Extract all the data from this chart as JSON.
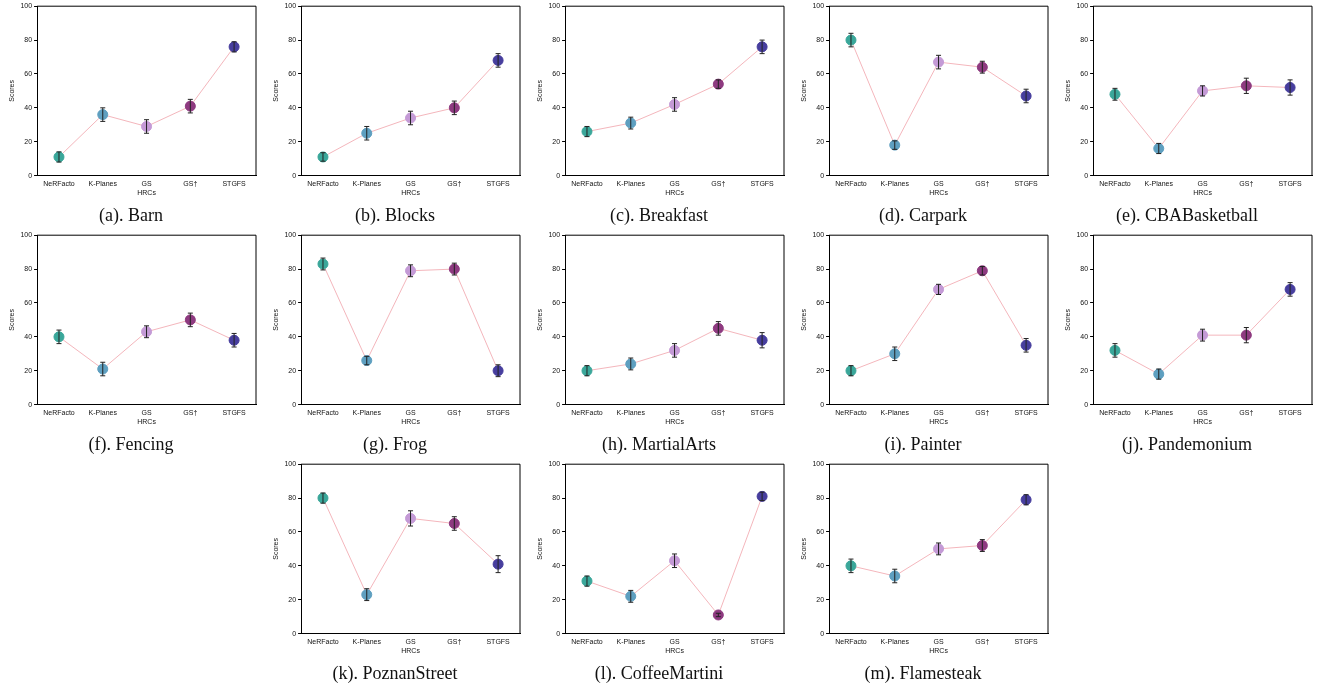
{
  "chart_data": [
    {
      "type": "line",
      "title": "(a). Barn",
      "xlabel": "HRCs",
      "ylabel": "Scores",
      "categories": [
        "NeRFacto",
        "K-Planes",
        "GS",
        "GS†",
        "STGFS"
      ],
      "ylim": [
        0,
        100
      ],
      "yticks": [
        0,
        20,
        40,
        60,
        80,
        100
      ],
      "grid": false,
      "legend": false,
      "marker": "circle",
      "series": [
        {
          "color": "#f4b6bc",
          "colors": [
            "#3aa79a",
            "#5e9fc0",
            "#c49ad6",
            "#8e3a80",
            "#473e9e"
          ],
          "values": [
            11,
            36,
            29,
            41,
            76
          ],
          "errors": [
            3,
            4,
            4,
            4,
            3
          ]
        }
      ]
    },
    {
      "type": "line",
      "title": "(b). Blocks",
      "xlabel": "HRCs",
      "ylabel": "Scores",
      "categories": [
        "NeRFacto",
        "K-Planes",
        "GS",
        "GS†",
        "STGFS"
      ],
      "ylim": [
        0,
        100
      ],
      "yticks": [
        0,
        20,
        40,
        60,
        80,
        100
      ],
      "grid": false,
      "legend": false,
      "marker": "circle",
      "series": [
        {
          "color": "#f4b6bc",
          "colors": [
            "#3aa79a",
            "#5e9fc0",
            "#c49ad6",
            "#8e3a80",
            "#473e9e"
          ],
          "values": [
            11,
            25,
            34,
            40,
            68
          ],
          "errors": [
            2.5,
            4,
            4,
            4,
            4
          ]
        }
      ]
    },
    {
      "type": "line",
      "title": "(c). Breakfast",
      "xlabel": "HRCs",
      "ylabel": "Scores",
      "categories": [
        "NeRFacto",
        "K-Planes",
        "GS",
        "GS†",
        "STGFS"
      ],
      "ylim": [
        0,
        100
      ],
      "yticks": [
        0,
        20,
        40,
        60,
        80,
        100
      ],
      "grid": false,
      "legend": false,
      "marker": "circle",
      "series": [
        {
          "color": "#f4b6bc",
          "colors": [
            "#3aa79a",
            "#5e9fc0",
            "#c49ad6",
            "#8e3a80",
            "#473e9e"
          ],
          "values": [
            26,
            31,
            42,
            54,
            76
          ],
          "errors": [
            3,
            3.5,
            4,
            2.5,
            4
          ]
        }
      ]
    },
    {
      "type": "line",
      "title": "(d). Carpark",
      "xlabel": "HRCs",
      "ylabel": "Scores",
      "categories": [
        "NeRFacto",
        "K-Planes",
        "GS",
        "GS†",
        "STGFS"
      ],
      "ylim": [
        0,
        100
      ],
      "yticks": [
        0,
        20,
        40,
        60,
        80,
        100
      ],
      "grid": false,
      "legend": false,
      "marker": "circle",
      "series": [
        {
          "color": "#f4b6bc",
          "colors": [
            "#3aa79a",
            "#5e9fc0",
            "#c49ad6",
            "#8e3a80",
            "#473e9e"
          ],
          "values": [
            80,
            18,
            67,
            64,
            47
          ],
          "errors": [
            4,
            2.5,
            4,
            3.5,
            4
          ]
        }
      ]
    },
    {
      "type": "line",
      "title": "(e). CBABasketball",
      "xlabel": "HRCs",
      "ylabel": "Scores",
      "categories": [
        "NeRFacto",
        "K-Planes",
        "GS",
        "GS†",
        "STGFS"
      ],
      "ylim": [
        0,
        100
      ],
      "yticks": [
        0,
        20,
        40,
        60,
        80,
        100
      ],
      "grid": false,
      "legend": false,
      "marker": "circle",
      "series": [
        {
          "color": "#f4b6bc",
          "colors": [
            "#3aa79a",
            "#5e9fc0",
            "#c49ad6",
            "#8e3a80",
            "#473e9e"
          ],
          "values": [
            48,
            16,
            50,
            53,
            52
          ],
          "errors": [
            3.5,
            3,
            3,
            4.5,
            4.5
          ]
        }
      ]
    },
    {
      "type": "line",
      "title": "(f). Fencing",
      "xlabel": "HRCs",
      "ylabel": "Scores",
      "categories": [
        "NeRFacto",
        "K-Planes",
        "GS",
        "GS†",
        "STGFS"
      ],
      "ylim": [
        0,
        100
      ],
      "yticks": [
        0,
        20,
        40,
        60,
        80,
        100
      ],
      "grid": false,
      "legend": false,
      "marker": "circle",
      "series": [
        {
          "color": "#f4b6bc",
          "colors": [
            "#3aa79a",
            "#5e9fc0",
            "#c49ad6",
            "#8e3a80",
            "#473e9e"
          ],
          "values": [
            40,
            21,
            43,
            50,
            38
          ],
          "errors": [
            4,
            4,
            3.5,
            4,
            4
          ]
        }
      ]
    },
    {
      "type": "line",
      "title": "(g). Frog",
      "xlabel": "HRCs",
      "ylabel": "Scores",
      "categories": [
        "NeRFacto",
        "K-Planes",
        "GS",
        "GS†",
        "STGFS"
      ],
      "ylim": [
        0,
        100
      ],
      "yticks": [
        0,
        20,
        40,
        60,
        80,
        100
      ],
      "grid": false,
      "legend": false,
      "marker": "circle",
      "series": [
        {
          "color": "#f4b6bc",
          "colors": [
            "#3aa79a",
            "#5e9fc0",
            "#c49ad6",
            "#8e3a80",
            "#473e9e"
          ],
          "values": [
            83,
            26,
            79,
            80,
            20
          ],
          "errors": [
            3.5,
            2.5,
            3.5,
            3.5,
            3.5
          ]
        }
      ]
    },
    {
      "type": "line",
      "title": "(h). MartialArts",
      "xlabel": "HRCs",
      "ylabel": "Scores",
      "categories": [
        "NeRFacto",
        "K-Planes",
        "GS",
        "GS†",
        "STGFS"
      ],
      "ylim": [
        0,
        100
      ],
      "yticks": [
        0,
        20,
        40,
        60,
        80,
        100
      ],
      "grid": false,
      "legend": false,
      "marker": "circle",
      "series": [
        {
          "color": "#f4b6bc",
          "colors": [
            "#3aa79a",
            "#5e9fc0",
            "#c49ad6",
            "#8e3a80",
            "#473e9e"
          ],
          "values": [
            20,
            24,
            32,
            45,
            38
          ],
          "errors": [
            3,
            3.5,
            4,
            4,
            4.5
          ]
        }
      ]
    },
    {
      "type": "line",
      "title": "(i). Painter",
      "xlabel": "HRCs",
      "ylabel": "Scores",
      "categories": [
        "NeRFacto",
        "K-Planes",
        "GS",
        "GS†",
        "STGFS"
      ],
      "ylim": [
        0,
        100
      ],
      "yticks": [
        0,
        20,
        40,
        60,
        80,
        100
      ],
      "grid": false,
      "legend": false,
      "marker": "circle",
      "series": [
        {
          "color": "#f4b6bc",
          "colors": [
            "#3aa79a",
            "#5e9fc0",
            "#c49ad6",
            "#8e3a80",
            "#473e9e"
          ],
          "values": [
            20,
            30,
            68,
            79,
            35
          ],
          "errors": [
            3,
            4,
            3,
            2.5,
            4
          ]
        }
      ]
    },
    {
      "type": "line",
      "title": "(j). Pandemonium",
      "xlabel": "HRCs",
      "ylabel": "Scores",
      "categories": [
        "NeRFacto",
        "K-Planes",
        "GS",
        "GS†",
        "STGFS"
      ],
      "ylim": [
        0,
        100
      ],
      "yticks": [
        0,
        20,
        40,
        60,
        80,
        100
      ],
      "grid": false,
      "legend": false,
      "marker": "circle",
      "series": [
        {
          "color": "#f4b6bc",
          "colors": [
            "#3aa79a",
            "#5e9fc0",
            "#c49ad6",
            "#8e3a80",
            "#473e9e"
          ],
          "values": [
            32,
            18,
            41,
            41,
            68
          ],
          "errors": [
            4,
            3,
            3.5,
            4.5,
            4
          ]
        }
      ]
    },
    {
      "type": "line",
      "title": "(k). PoznanStreet",
      "xlabel": "HRCs",
      "ylabel": "Scores",
      "categories": [
        "NeRFacto",
        "K-Planes",
        "GS",
        "GS†",
        "STGFS"
      ],
      "ylim": [
        0,
        100
      ],
      "yticks": [
        0,
        20,
        40,
        60,
        80,
        100
      ],
      "grid": false,
      "legend": false,
      "marker": "circle",
      "series": [
        {
          "color": "#f4b6bc",
          "colors": [
            "#3aa79a",
            "#5e9fc0",
            "#c49ad6",
            "#8e3a80",
            "#473e9e"
          ],
          "values": [
            80,
            23,
            68,
            65,
            41
          ],
          "errors": [
            3,
            3.5,
            4.5,
            4,
            5
          ]
        }
      ]
    },
    {
      "type": "line",
      "title": "(l). CoffeeMartini",
      "xlabel": "HRCs",
      "ylabel": "Scores",
      "categories": [
        "NeRFacto",
        "K-Planes",
        "GS",
        "GS†",
        "STGFS"
      ],
      "ylim": [
        0,
        100
      ],
      "yticks": [
        0,
        20,
        40,
        60,
        80,
        100
      ],
      "grid": false,
      "legend": false,
      "marker": "circle",
      "series": [
        {
          "color": "#f4b6bc",
          "colors": [
            "#3aa79a",
            "#5e9fc0",
            "#c49ad6",
            "#8e3a80",
            "#473e9e"
          ],
          "values": [
            31,
            22,
            43,
            11,
            81
          ],
          "errors": [
            3,
            3.5,
            4,
            1,
            2.5
          ]
        }
      ]
    },
    {
      "type": "line",
      "title": "(m). Flamesteak",
      "xlabel": "HRCs",
      "ylabel": "Scores",
      "categories": [
        "NeRFacto",
        "K-Planes",
        "GS",
        "GS†",
        "STGFS"
      ],
      "ylim": [
        0,
        100
      ],
      "yticks": [
        0,
        20,
        40,
        60,
        80,
        100
      ],
      "grid": false,
      "legend": false,
      "marker": "circle",
      "series": [
        {
          "color": "#f4b6bc",
          "colors": [
            "#3aa79a",
            "#5e9fc0",
            "#c49ad6",
            "#8e3a80",
            "#473e9e"
          ],
          "values": [
            40,
            34,
            50,
            52,
            79
          ],
          "errors": [
            4,
            4,
            3.5,
            3.5,
            3
          ]
        }
      ]
    }
  ]
}
